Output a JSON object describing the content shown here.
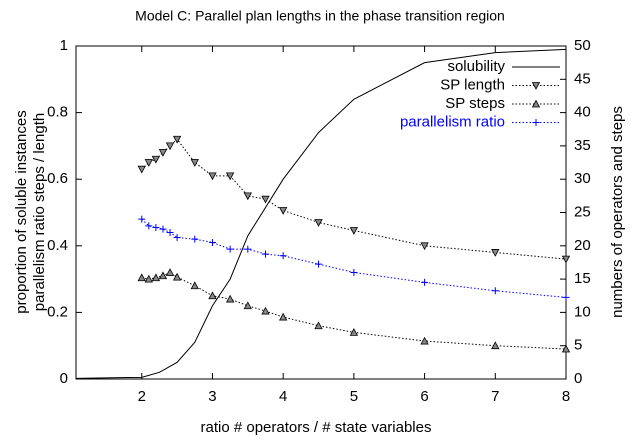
{
  "chart_data": {
    "type": "line",
    "title": "Model C: Parallel plan lengths in the phase transition region",
    "xlabel": "ratio # operators / # state variables",
    "ylabel": [
      "proportion of soluble instances",
      "parallelism ratio steps / length"
    ],
    "y2label": "numbers of operators and steps",
    "xlim": [
      1.07,
      8
    ],
    "xticks": [
      2,
      3,
      4,
      5,
      6,
      7,
      8
    ],
    "ylim": [
      0,
      1
    ],
    "yticks": [
      0,
      0.2,
      0.4,
      0.6,
      0.8,
      1
    ],
    "y2lim": [
      0,
      50
    ],
    "y2ticks": [
      0,
      5,
      10,
      15,
      20,
      25,
      30,
      35,
      40,
      45,
      50
    ],
    "grid": false,
    "legend": "top-right",
    "series": [
      {
        "name": "solubility",
        "color": "#000000",
        "dash": "solid",
        "marker": "none",
        "x": [
          1.07,
          2,
          2.25,
          2.5,
          2.75,
          3,
          3.25,
          3.5,
          4,
          4.5,
          5,
          6,
          7,
          8
        ],
        "values": [
          0.002,
          0.005,
          0.02,
          0.05,
          0.11,
          0.22,
          0.3,
          0.43,
          0.6,
          0.74,
          0.84,
          0.95,
          0.98,
          0.99
        ]
      },
      {
        "name": "SP length",
        "color": "#000000",
        "dash": "dotted",
        "marker": "triangle-down",
        "axis": "y2",
        "x": [
          2,
          2.1,
          2.2,
          2.3,
          2.4,
          2.5,
          2.75,
          3,
          3.25,
          3.5,
          3.75,
          4,
          4.5,
          5,
          6,
          7,
          8
        ],
        "values": [
          31.5,
          32.5,
          33,
          34,
          35,
          36,
          32.5,
          30.5,
          30.5,
          27.5,
          27,
          25.3,
          23.5,
          22.3,
          20,
          19,
          18
        ]
      },
      {
        "name": "SP steps",
        "color": "#000000",
        "dash": "dotted",
        "marker": "triangle-up",
        "axis": "y2",
        "x": [
          2,
          2.1,
          2.2,
          2.3,
          2.4,
          2.5,
          2.75,
          3,
          3.25,
          3.5,
          3.75,
          4,
          4.5,
          5,
          6,
          7,
          8
        ],
        "values": [
          15.2,
          15,
          15.2,
          15.5,
          16,
          15.3,
          14,
          12.5,
          12,
          11,
          10.2,
          9.3,
          8,
          7,
          5.7,
          5,
          4.5
        ]
      },
      {
        "name": "parallelism ratio",
        "color": "#0000ff",
        "dash": "dotted",
        "marker": "plus",
        "x": [
          2,
          2.1,
          2.2,
          2.3,
          2.4,
          2.5,
          2.75,
          3,
          3.25,
          3.5,
          3.75,
          4,
          4.5,
          5,
          6,
          7,
          8
        ],
        "values": [
          0.48,
          0.46,
          0.455,
          0.45,
          0.44,
          0.425,
          0.42,
          0.41,
          0.39,
          0.39,
          0.375,
          0.37,
          0.345,
          0.32,
          0.29,
          0.265,
          0.245
        ]
      }
    ]
  }
}
